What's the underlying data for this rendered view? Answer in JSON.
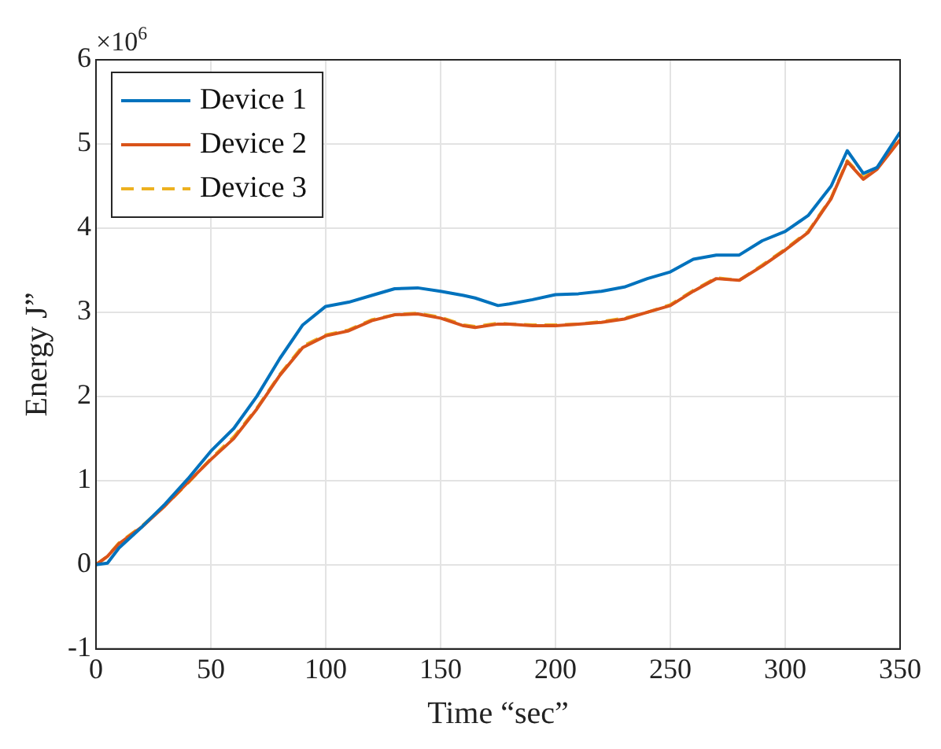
{
  "chart_data": {
    "type": "line",
    "xlabel": "Time “sec”",
    "ylabel": "Energy J”",
    "annotations": [
      "×10$^{6}$"
    ],
    "xlim": [
      0,
      350
    ],
    "ylim": [
      -1,
      6
    ],
    "xticks": [
      0,
      50,
      100,
      150,
      200,
      250,
      300,
      350
    ],
    "yticks": [
      -1,
      0,
      1,
      2,
      3,
      4,
      5,
      6
    ],
    "grid": true,
    "legend": "top left",
    "marker": "none",
    "x": [
      0,
      5,
      10,
      20,
      30,
      40,
      50,
      60,
      70,
      80,
      90,
      100,
      110,
      120,
      130,
      140,
      150,
      160,
      165,
      175,
      180,
      190,
      200,
      210,
      220,
      230,
      240,
      250,
      260,
      270,
      280,
      290,
      300,
      310,
      320,
      327,
      334,
      340,
      350
    ],
    "series": [
      {
        "name": "Device 1",
        "color": "#0072bd",
        "line_style": "solid",
        "values": [
          0,
          0.02,
          0.2,
          0.45,
          0.72,
          1.02,
          1.35,
          1.62,
          2.0,
          2.45,
          2.85,
          3.07,
          3.12,
          3.2,
          3.28,
          3.29,
          3.25,
          3.2,
          3.17,
          3.08,
          3.1,
          3.15,
          3.21,
          3.22,
          3.25,
          3.3,
          3.4,
          3.48,
          3.63,
          3.68,
          3.68,
          3.85,
          3.96,
          4.15,
          4.5,
          4.92,
          4.65,
          4.72,
          5.14
        ]
      },
      {
        "name": "Device 2",
        "color": "#d95319",
        "line_style": "solid",
        "values": [
          0,
          0.1,
          0.25,
          0.45,
          0.7,
          0.98,
          1.25,
          1.5,
          1.85,
          2.25,
          2.58,
          2.72,
          2.78,
          2.9,
          2.97,
          2.98,
          2.93,
          2.84,
          2.82,
          2.86,
          2.86,
          2.84,
          2.84,
          2.86,
          2.88,
          2.92,
          3.0,
          3.08,
          3.25,
          3.4,
          3.38,
          3.55,
          3.74,
          3.95,
          4.35,
          4.79,
          4.58,
          4.7,
          5.05
        ]
      },
      {
        "name": "Device 3",
        "color": "#edb120",
        "line_style": "dashed",
        "values": [
          0,
          0.1,
          0.26,
          0.46,
          0.7,
          0.97,
          1.26,
          1.52,
          1.86,
          2.26,
          2.6,
          2.73,
          2.79,
          2.91,
          2.97,
          2.99,
          2.94,
          2.85,
          2.83,
          2.87,
          2.86,
          2.85,
          2.85,
          2.86,
          2.89,
          2.93,
          3.0,
          3.09,
          3.26,
          3.41,
          3.38,
          3.56,
          3.75,
          3.96,
          4.36,
          4.8,
          4.6,
          4.72,
          5.06
        ]
      }
    ]
  }
}
